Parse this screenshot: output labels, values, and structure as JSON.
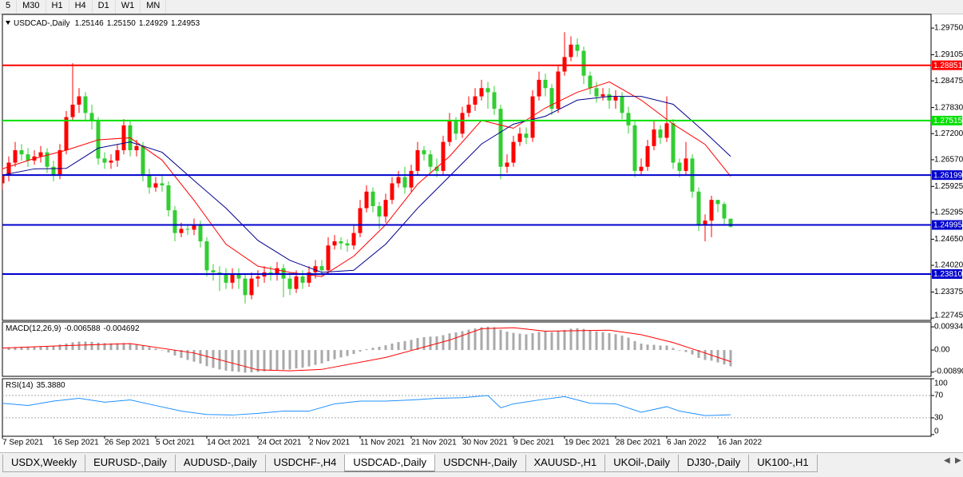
{
  "toolbar": {
    "timeframes": [
      "5",
      "M30",
      "H1",
      "H4",
      "D1",
      "W1",
      "MN"
    ]
  },
  "chart_data": [
    {
      "type": "candlestick",
      "title": "USDCAD-,Daily",
      "ohlc_labels": [
        "1.25146",
        "1.25150",
        "1.24929",
        "1.24953"
      ],
      "up_color": "#ff0000",
      "down_color": "#32cd32",
      "ylim": [
        1.2269,
        1.3008
      ],
      "yticks": [
        {
          "value": 1.2975,
          "label": "1.29750"
        },
        {
          "value": 1.29105,
          "label": "1.29105"
        },
        {
          "value": 1.28475,
          "label": "1.28475"
        },
        {
          "value": 1.2783,
          "label": "1.27830"
        },
        {
          "value": 1.272,
          "label": "1.27200"
        },
        {
          "value": 1.2657,
          "label": "1.26570"
        },
        {
          "value": 1.25925,
          "label": "1.25925"
        },
        {
          "value": 1.25295,
          "label": "1.25295"
        },
        {
          "value": 1.2465,
          "label": "1.24650"
        },
        {
          "value": 1.2402,
          "label": "1.24020"
        },
        {
          "value": 1.23375,
          "label": "1.23375"
        },
        {
          "value": 1.22745,
          "label": "1.22745"
        }
      ],
      "levels": {
        "values": [
          1.28851,
          1.27515,
          1.26199,
          1.24995,
          1.2381
        ],
        "value_labels": [
          "1.28851",
          "1.27515",
          "1.26199",
          "1.24995",
          "1.23810"
        ],
        "colors": [
          "#ff0000",
          "#00e000",
          "#0000cd",
          "#0000cd",
          "#0000cd"
        ]
      },
      "candles": [
        [
          1.26,
          1.264,
          1.2585,
          1.262
        ],
        [
          1.262,
          1.2665,
          1.2605,
          1.265
        ],
        [
          1.265,
          1.27,
          1.264,
          1.268
        ],
        [
          1.268,
          1.2695,
          1.2655,
          1.267
        ],
        [
          1.267,
          1.2685,
          1.264,
          1.2655
        ],
        [
          1.2655,
          1.268,
          1.2645,
          1.2665
        ],
        [
          1.2665,
          1.269,
          1.265,
          1.2675
        ],
        [
          1.2675,
          1.2685,
          1.2625,
          1.264
        ],
        [
          1.264,
          1.2655,
          1.2605,
          1.262
        ],
        [
          1.262,
          1.2695,
          1.261,
          1.268
        ],
        [
          1.268,
          1.2775,
          1.267,
          1.276
        ],
        [
          1.276,
          1.289,
          1.275,
          1.279
        ],
        [
          1.279,
          1.283,
          1.277,
          1.281
        ],
        [
          1.281,
          1.282,
          1.275,
          1.277
        ],
        [
          1.277,
          1.279,
          1.273,
          1.275
        ],
        [
          1.275,
          1.276,
          1.2645,
          1.266
        ],
        [
          1.266,
          1.2675,
          1.2635,
          1.265
        ],
        [
          1.265,
          1.267,
          1.2635,
          1.2655
        ],
        [
          1.2655,
          1.2695,
          1.264,
          1.268
        ],
        [
          1.268,
          1.2755,
          1.267,
          1.274
        ],
        [
          1.274,
          1.275,
          1.2665,
          1.268
        ],
        [
          1.268,
          1.2705,
          1.2665,
          1.269
        ],
        [
          1.269,
          1.27,
          1.2605,
          1.262
        ],
        [
          1.262,
          1.2635,
          1.2575,
          1.259
        ],
        [
          1.259,
          1.2615,
          1.258,
          1.26
        ],
        [
          1.26,
          1.262,
          1.258,
          1.2595
        ],
        [
          1.2595,
          1.2605,
          1.252,
          1.2535
        ],
        [
          1.2535,
          1.2545,
          1.246,
          1.248
        ],
        [
          1.248,
          1.2505,
          1.247,
          1.249
        ],
        [
          1.249,
          1.25,
          1.2475,
          1.2488
        ],
        [
          1.2488,
          1.2515,
          1.2475,
          1.25
        ],
        [
          1.25,
          1.251,
          1.2445,
          1.246
        ],
        [
          1.246,
          1.247,
          1.2375,
          1.239
        ],
        [
          1.239,
          1.2405,
          1.2365,
          1.2385
        ],
        [
          1.2385,
          1.24,
          1.234,
          1.238
        ],
        [
          1.238,
          1.2395,
          1.2345,
          1.236
        ],
        [
          1.236,
          1.2395,
          1.2345,
          1.238
        ],
        [
          1.238,
          1.2395,
          1.2345,
          1.237
        ],
        [
          1.237,
          1.238,
          1.231,
          1.233
        ],
        [
          1.233,
          1.2385,
          1.232,
          1.237
        ],
        [
          1.237,
          1.239,
          1.235,
          1.2375
        ],
        [
          1.2375,
          1.24,
          1.236,
          1.2385
        ],
        [
          1.2385,
          1.24,
          1.2365,
          1.238
        ],
        [
          1.238,
          1.241,
          1.2365,
          1.2395
        ],
        [
          1.2395,
          1.2405,
          1.2325,
          1.237
        ],
        [
          1.237,
          1.2385,
          1.233,
          1.2345
        ],
        [
          1.2345,
          1.239,
          1.2335,
          1.2375
        ],
        [
          1.2375,
          1.239,
          1.2345,
          1.236
        ],
        [
          1.236,
          1.24,
          1.235,
          1.2385
        ],
        [
          1.2385,
          1.2415,
          1.237,
          1.24
        ],
        [
          1.24,
          1.2415,
          1.2375,
          1.239
        ],
        [
          1.239,
          1.247,
          1.238,
          1.245
        ],
        [
          1.245,
          1.2475,
          1.244,
          1.246
        ],
        [
          1.246,
          1.247,
          1.244,
          1.2455
        ],
        [
          1.2455,
          1.2465,
          1.2435,
          1.245
        ],
        [
          1.245,
          1.25,
          1.244,
          1.248
        ],
        [
          1.248,
          1.256,
          1.247,
          1.254
        ],
        [
          1.254,
          1.2595,
          1.253,
          1.258
        ],
        [
          1.258,
          1.259,
          1.253,
          1.2545
        ],
        [
          1.2545,
          1.2555,
          1.249,
          1.252
        ],
        [
          1.252,
          1.2575,
          1.2505,
          1.256
        ],
        [
          1.256,
          1.2615,
          1.255,
          1.26
        ],
        [
          1.26,
          1.263,
          1.259,
          1.2615
        ],
        [
          1.2615,
          1.264,
          1.2575,
          1.259
        ],
        [
          1.259,
          1.2645,
          1.258,
          1.263
        ],
        [
          1.263,
          1.27,
          1.262,
          1.268
        ],
        [
          1.268,
          1.269,
          1.2655,
          1.267
        ],
        [
          1.267,
          1.268,
          1.2625,
          1.264
        ],
        [
          1.264,
          1.266,
          1.2615,
          1.263
        ],
        [
          1.263,
          1.2715,
          1.262,
          1.27
        ],
        [
          1.27,
          1.277,
          1.269,
          1.275
        ],
        [
          1.275,
          1.276,
          1.2705,
          1.272
        ],
        [
          1.272,
          1.2785,
          1.271,
          1.277
        ],
        [
          1.277,
          1.281,
          1.276,
          1.279
        ],
        [
          1.279,
          1.283,
          1.2775,
          1.281
        ],
        [
          1.281,
          1.285,
          1.28,
          1.283
        ],
        [
          1.283,
          1.2845,
          1.278,
          1.282
        ],
        [
          1.282,
          1.2835,
          1.2765,
          1.278
        ],
        [
          1.278,
          1.279,
          1.261,
          1.264
        ],
        [
          1.264,
          1.267,
          1.2625,
          1.265
        ],
        [
          1.265,
          1.2715,
          1.264,
          1.27
        ],
        [
          1.27,
          1.2735,
          1.269,
          1.272
        ],
        [
          1.272,
          1.2735,
          1.2695,
          1.271
        ],
        [
          1.271,
          1.2825,
          1.27,
          1.281
        ],
        [
          1.281,
          1.287,
          1.28,
          1.285
        ],
        [
          1.285,
          1.2865,
          1.281,
          1.283
        ],
        [
          1.283,
          1.284,
          1.2765,
          1.278
        ],
        [
          1.278,
          1.2885,
          1.277,
          1.287
        ],
        [
          1.287,
          1.2965,
          1.286,
          1.2905
        ],
        [
          1.2905,
          1.2955,
          1.2895,
          1.2935
        ],
        [
          1.2935,
          1.295,
          1.2905,
          1.292
        ],
        [
          1.292,
          1.293,
          1.284,
          1.286
        ],
        [
          1.286,
          1.287,
          1.2815,
          1.283
        ],
        [
          1.283,
          1.2845,
          1.2795,
          1.281
        ],
        [
          1.281,
          1.283,
          1.28,
          1.2815
        ],
        [
          1.2815,
          1.283,
          1.278,
          1.28
        ],
        [
          1.28,
          1.2825,
          1.278,
          1.281
        ],
        [
          1.281,
          1.282,
          1.2755,
          1.277
        ],
        [
          1.277,
          1.2785,
          1.272,
          1.274
        ],
        [
          1.274,
          1.275,
          1.2615,
          1.263
        ],
        [
          1.263,
          1.266,
          1.262,
          1.264
        ],
        [
          1.264,
          1.2705,
          1.263,
          1.269
        ],
        [
          1.269,
          1.275,
          1.268,
          1.273
        ],
        [
          1.273,
          1.274,
          1.2695,
          1.271
        ],
        [
          1.271,
          1.281,
          1.27,
          1.2745
        ],
        [
          1.2745,
          1.2755,
          1.2635,
          1.265
        ],
        [
          1.265,
          1.266,
          1.2615,
          1.263
        ],
        [
          1.263,
          1.27,
          1.262,
          1.266
        ],
        [
          1.266,
          1.267,
          1.2565,
          1.258
        ],
        [
          1.258,
          1.259,
          1.2485,
          1.25
        ],
        [
          1.25,
          1.2525,
          1.246,
          1.251
        ],
        [
          1.251,
          1.257,
          1.247,
          1.256
        ],
        [
          1.256,
          1.256,
          1.253,
          1.255
        ],
        [
          1.255,
          1.2555,
          1.25,
          1.2515
        ],
        [
          1.25146,
          1.2515,
          1.24929,
          1.24953
        ]
      ],
      "ma": [
        {
          "color": "#ff0000",
          "x": [
            0,
            5,
            10,
            15,
            20,
            25,
            30,
            35,
            40,
            45,
            50,
            55,
            60,
            65,
            70,
            75,
            80,
            85,
            90,
            95,
            100,
            105,
            110,
            114
          ],
          "values": [
            1.2635,
            1.266,
            1.268,
            1.2705,
            1.271,
            1.2656,
            1.2559,
            1.2453,
            1.24,
            1.2385,
            1.2375,
            1.2424,
            1.25,
            1.2598,
            1.2665,
            1.2752,
            1.2733,
            1.2782,
            1.282,
            1.2845,
            1.2801,
            1.2743,
            1.2694,
            1.2617
          ]
        },
        {
          "color": "#00008b",
          "x": [
            0,
            5,
            10,
            15,
            20,
            25,
            30,
            35,
            40,
            45,
            50,
            55,
            60,
            65,
            70,
            75,
            80,
            85,
            90,
            95,
            100,
            105,
            110,
            114
          ],
          "values": [
            1.262,
            1.2635,
            1.2636,
            1.2685,
            1.27,
            1.2675,
            1.2607,
            1.254,
            1.2462,
            1.2414,
            1.2385,
            1.239,
            1.2453,
            1.254,
            1.2617,
            1.2695,
            1.2743,
            1.2762,
            1.2801,
            1.281,
            1.281,
            1.2791,
            1.2723,
            1.2665
          ]
        }
      ]
    },
    {
      "type": "macd",
      "title": "MACD(12,26,9)",
      "hist_color": "#a9a9a9",
      "signal_color": "#ff0000",
      "ylim": [
        -0.0106,
        0.0113
      ],
      "yticks": [
        0.009345,
        {
          "value": 0,
          "label": "0.00"
        },
        -0.008903
      ],
      "values": [
        0.001,
        0.0011,
        0.0012,
        0.0013,
        0.0013,
        0.0014,
        0.0015,
        0.0016,
        0.0018,
        0.0022,
        0.0026,
        0.0031,
        0.0034,
        0.0034,
        0.0033,
        0.003,
        0.0028,
        0.0027,
        0.0027,
        0.0028,
        0.0026,
        0.0023,
        0.0018,
        0.0012,
        0.0006,
        0,
        -0.001,
        -0.0022,
        -0.0032,
        -0.004,
        -0.0047,
        -0.0055,
        -0.0065,
        -0.0072,
        -0.0078,
        -0.0083,
        -0.0086,
        -0.0088,
        -0.0091,
        -0.009,
        -0.0088,
        -0.0086,
        -0.0083,
        -0.008,
        -0.0079,
        -0.0078,
        -0.0074,
        -0.0071,
        -0.0066,
        -0.006,
        -0.0054,
        -0.0045,
        -0.0037,
        -0.003,
        -0.0024,
        -0.0016,
        -0.0006,
        0.0003,
        0.0009,
        0.0013,
        0.0019,
        0.0026,
        0.0032,
        0.0036,
        0.0041,
        0.0048,
        0.0052,
        0.0054,
        0.0055,
        0.006,
        0.0067,
        0.0071,
        0.0076,
        0.0082,
        0.0087,
        0.0092,
        0.0094,
        0.0092,
        0.0082,
        0.0074,
        0.0069,
        0.0066,
        0.0063,
        0.0068,
        0.0073,
        0.0075,
        0.0072,
        0.0076,
        0.0081,
        0.0086,
        0.0088,
        0.0085,
        0.008,
        0.0075,
        0.0072,
        0.0068,
        0.0064,
        0.0058,
        0.005,
        0.0036,
        0.0026,
        0.0022,
        0.0021,
        0.0018,
        0.0018,
        0.0008,
        -0.0002,
        -0.0008,
        -0.0018,
        -0.0032,
        -0.004,
        -0.0043,
        -0.005,
        -0.0058,
        -0.006588
      ],
      "signal": {
        "x": [
          0,
          10,
          20,
          30,
          40,
          45,
          50,
          60,
          70,
          75,
          80,
          85,
          90,
          95,
          100,
          105,
          110,
          114
        ],
        "values": [
          0.0008,
          0.0018,
          0.0026,
          -0.0012,
          -0.008,
          -0.0084,
          -0.0078,
          -0.003,
          0.004,
          0.0086,
          0.009,
          0.0076,
          0.0078,
          0.008,
          0.0062,
          0.003,
          -0.0012,
          -0.004692
        ]
      }
    },
    {
      "type": "rsi",
      "title": "RSI(14)",
      "value_label": "35.3880",
      "color": "#1e90ff",
      "ylim": [
        -3,
        100
      ],
      "yticks": [
        100,
        70,
        30,
        0
      ],
      "levels": [
        70,
        30
      ],
      "x": [
        0,
        4,
        8,
        12,
        16,
        20,
        24,
        28,
        32,
        36,
        40,
        44,
        48,
        52,
        56,
        60,
        64,
        68,
        72,
        76,
        78,
        80,
        84,
        88,
        92,
        96,
        100,
        104,
        106,
        110,
        114
      ],
      "values": [
        56,
        52,
        60,
        65,
        58,
        62,
        52,
        42,
        36,
        35,
        38,
        42,
        42,
        55,
        60,
        60,
        62,
        65,
        66,
        70,
        48,
        55,
        62,
        68,
        56,
        55,
        40,
        50,
        42,
        34,
        35.388
      ],
      "xticks": [
        {
          "value": 0,
          "label": "7 Sep 2021"
        },
        {
          "value": 8,
          "label": "16 Sep 2021"
        },
        {
          "value": 16,
          "label": "26 Sep 2021"
        },
        {
          "value": 24,
          "label": "5 Oct 2021"
        },
        {
          "value": 32,
          "label": "14 Oct 2021"
        },
        {
          "value": 40,
          "label": "24 Oct 2021"
        },
        {
          "value": 48,
          "label": "2 Nov 2021"
        },
        {
          "value": 56,
          "label": "11 Nov 2021"
        },
        {
          "value": 64,
          "label": "21 Nov 2021"
        },
        {
          "value": 72,
          "label": "30 Nov 2021"
        },
        {
          "value": 80,
          "label": "9 Dec 2021"
        },
        {
          "value": 88,
          "label": "19 Dec 2021"
        },
        {
          "value": 96,
          "label": "28 Dec 2021"
        },
        {
          "value": 104,
          "label": "6 Jan 2022"
        },
        {
          "value": 112,
          "label": "16 Jan 2022"
        }
      ]
    }
  ],
  "tabs": {
    "items": [
      "USDX,Weekly",
      "EURUSD-,Daily",
      "AUDUSD-,Daily",
      "USDCHF-,H4",
      "USDCAD-,Daily",
      "USDCNH-,Daily",
      "XAUUSD-,H1",
      "UKOil-,Daily",
      "DJ30-,Daily",
      "UK100-,H1"
    ],
    "active": 4
  }
}
